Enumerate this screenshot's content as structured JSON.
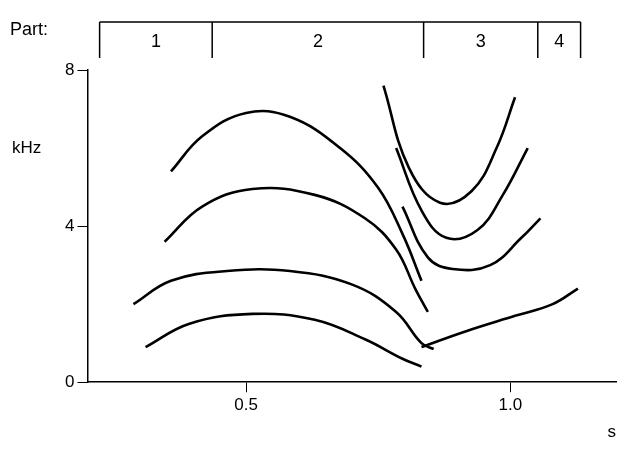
{
  "chart_data": {
    "type": "line",
    "x_label": "s",
    "y_label": "kHz",
    "xlim": [
      0.2,
      1.2
    ],
    "xticks": [
      0.5,
      {
        "value": 1,
        "label": "1.0"
      }
    ],
    "ylim": [
      0,
      8
    ],
    "yticks": [
      0,
      4,
      8
    ],
    "grid": false,
    "color": "#000000",
    "parts": {
      "title": "Part:",
      "labels": [
        "1",
        "2",
        "3",
        "4"
      ],
      "bounds": [
        0.223,
        0.436,
        0.836,
        1.052,
        1.133
      ]
    },
    "series": [
      {
        "x": [
          0.31,
          0.393,
          0.512,
          0.63,
          0.725,
          0.796,
          0.832
        ],
        "values": [
          0.9,
          1.5,
          1.75,
          1.6,
          1.1,
          0.6,
          0.4
        ]
      },
      {
        "x": [
          0.287,
          0.358,
          0.464,
          0.583,
          0.701,
          0.784,
          0.832,
          0.855
        ],
        "values": [
          2.0,
          2.6,
          2.85,
          2.85,
          2.5,
          1.8,
          1.0,
          0.85
        ]
      },
      {
        "x": [
          0.346,
          0.417,
          0.512,
          0.63,
          0.725,
          0.784,
          0.82,
          0.844
        ],
        "values": [
          3.6,
          4.5,
          4.95,
          4.8,
          4.2,
          3.4,
          2.4,
          1.8
        ]
      },
      {
        "x": [
          0.358,
          0.417,
          0.5,
          0.583,
          0.678,
          0.749,
          0.796,
          0.832
        ],
        "values": [
          5.4,
          6.3,
          6.9,
          6.8,
          6.0,
          5.0,
          3.8,
          2.6
        ]
      },
      {
        "x": [
          0.76,
          0.808,
          0.867,
          0.927,
          0.974,
          1.009
        ],
        "values": [
          7.6,
          5.5,
          4.6,
          4.9,
          6.0,
          7.3
        ]
      },
      {
        "x": [
          0.784,
          0.832,
          0.879,
          0.938,
          0.986,
          1.033
        ],
        "values": [
          6.0,
          4.4,
          3.7,
          3.9,
          4.8,
          6.0
        ]
      },
      {
        "x": [
          0.796,
          0.844,
          0.891,
          0.962,
          1.021,
          1.057
        ],
        "values": [
          4.5,
          3.2,
          2.9,
          3.0,
          3.7,
          4.2
        ]
      },
      {
        "x": [
          0.832,
          0.915,
          1.009,
          1.08,
          1.128
        ],
        "values": [
          0.9,
          1.3,
          1.7,
          2.0,
          2.4
        ]
      }
    ]
  }
}
